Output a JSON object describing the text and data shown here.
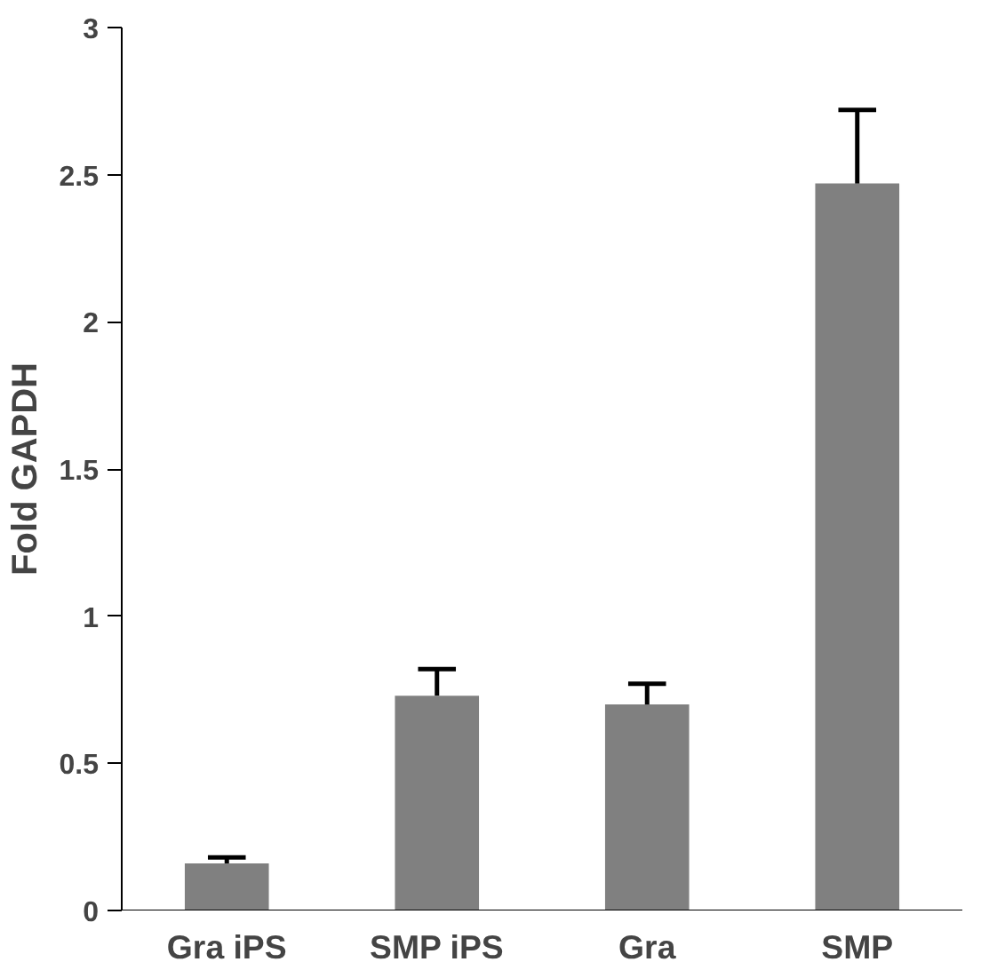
{
  "chart_data": {
    "type": "bar",
    "ylabel": "Fold GAPDH",
    "categories": [
      "Gra iPS",
      "SMP iPS",
      "Gra",
      "SMP"
    ],
    "values": [
      0.16,
      0.73,
      0.7,
      2.47
    ],
    "errors": [
      0.02,
      0.09,
      0.07,
      0.25
    ],
    "color": "#808080",
    "ylim": [
      0,
      3
    ],
    "yticks": [
      0,
      0.5,
      1,
      1.5,
      2,
      2.5,
      3
    ],
    "grid": false
  }
}
